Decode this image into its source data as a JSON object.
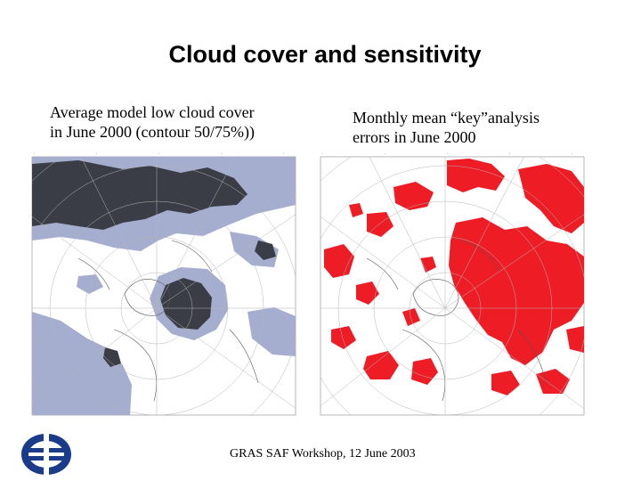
{
  "title": "Cloud cover and sensitivity",
  "left_panel": {
    "caption_line1": "Average model low cloud cover",
    "caption_line2": "in June 2000 (contour 50/75%))"
  },
  "right_panel": {
    "caption_line1": "Monthly mean “key”analysis",
    "caption_line2": "errors in June 2000"
  },
  "footer": "GRAS SAF Workshop, 12 June 2003",
  "colors": {
    "cloud_50": "#a6aed0",
    "cloud_75": "#3a3d45",
    "error": "#ee1c25",
    "grid": "#b5b5b5",
    "coast": "#555555",
    "logo": "#1a3a8a"
  },
  "logo_icon": "ecmwf-logo-icon"
}
